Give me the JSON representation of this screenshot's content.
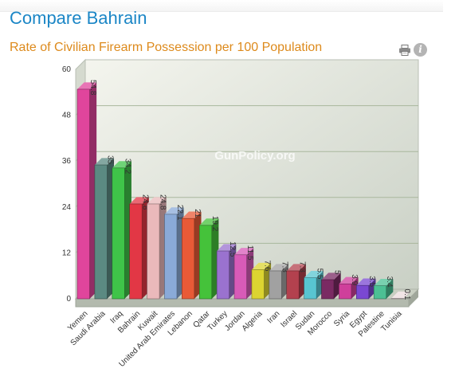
{
  "page": {
    "title": "Compare Bahrain"
  },
  "toolbar": {
    "print_icon": "printer-icon",
    "info_icon": "info-icon",
    "info_glyph": "i"
  },
  "chart_data": {
    "type": "bar",
    "title": "Rate of Civilian Firearm Possession per 100 Population",
    "watermark": "GunPolicy.org",
    "ylim": [
      0,
      60
    ],
    "yticks": [
      0,
      12,
      24,
      36,
      48,
      60
    ],
    "grid": true,
    "categories": [
      "Yemen",
      "Saudi Arabia",
      "Iraq",
      "Bahrain",
      "Kuwait",
      "United Arab Emirates",
      "Lebanon",
      "Qatar",
      "Turkey",
      "Jordan",
      "Algeria",
      "Iran",
      "Israel",
      "Sudan",
      "Morocco",
      "Syria",
      "Egypt",
      "Palestine",
      "Tunisia"
    ],
    "values": [
      54.8,
      35,
      34.2,
      24.8,
      24.8,
      22.1,
      21,
      19.2,
      12.5,
      11.5,
      7.6,
      7.3,
      7.3,
      5.5,
      5,
      3.9,
      3.5,
      3.4,
      0.1
    ],
    "labels": [
      "54.8",
      "35",
      "34.2",
      "24.8",
      "24.8",
      "22.1",
      "21",
      "19.2",
      "12.5",
      "11.5",
      "7.6",
      "7.3",
      "7.3",
      "5.5",
      "5",
      "3.9",
      "3.5",
      "3.4",
      "0.1"
    ],
    "colors": [
      "#e0459c",
      "#5b8a82",
      "#3fc449",
      "#e23745",
      "#eab9bb",
      "#8aaad8",
      "#e85a37",
      "#45c23a",
      "#9a72cf",
      "#d85bb8",
      "#dcd431",
      "#a1a1a1",
      "#b3414e",
      "#58c5d1",
      "#7a2a63",
      "#cf3f9b",
      "#7a48d2",
      "#4cc094",
      "#ecdcde"
    ]
  }
}
